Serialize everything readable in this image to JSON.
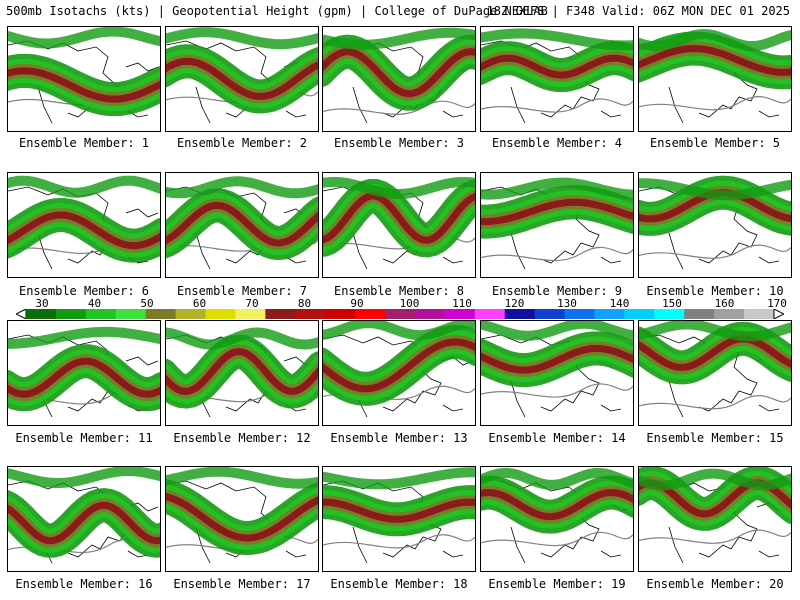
{
  "header": {
    "left": "500mb Isotachs (kts) | Geopotential Height (gpm) | College of DuPage NEXLAB",
    "right": "18Z GEFS | F348 Valid: 06Z MON DEC 01 2025"
  },
  "panels": [
    {
      "label": "Ensemble Member: 1"
    },
    {
      "label": "Ensemble Member: 2"
    },
    {
      "label": "Ensemble Member: 3"
    },
    {
      "label": "Ensemble Member: 4"
    },
    {
      "label": "Ensemble Member: 5"
    },
    {
      "label": "Ensemble Member: 6"
    },
    {
      "label": "Ensemble Member: 7"
    },
    {
      "label": "Ensemble Member: 8"
    },
    {
      "label": "Ensemble Member: 9"
    },
    {
      "label": "Ensemble Member: 10"
    },
    {
      "label": "Ensemble Member: 11"
    },
    {
      "label": "Ensemble Member: 12"
    },
    {
      "label": "Ensemble Member: 13"
    },
    {
      "label": "Ensemble Member: 14"
    },
    {
      "label": "Ensemble Member: 15"
    },
    {
      "label": "Ensemble Member: 16"
    },
    {
      "label": "Ensemble Member: 17"
    },
    {
      "label": "Ensemble Member: 18"
    },
    {
      "label": "Ensemble Member: 19"
    },
    {
      "label": "Ensemble Member: 20"
    }
  ],
  "colorbar": {
    "labels": [
      "30",
      "40",
      "50",
      "60",
      "70",
      "80",
      "90",
      "100",
      "110",
      "120",
      "130",
      "140",
      "150",
      "160",
      "170"
    ],
    "colors": [
      "#0a6e0a",
      "#139b13",
      "#22c322",
      "#3ee03e",
      "#7a7a2a",
      "#b3b32a",
      "#e0e000",
      "#f0f060",
      "#8b1a1a",
      "#b31010",
      "#d00000",
      "#ff0000",
      "#a0206e",
      "#b0109a",
      "#d000d0",
      "#ff40ff",
      "#1010a0",
      "#1040d0",
      "#1070f0",
      "#10a0ff",
      "#00d0ff",
      "#00ffff",
      "#808080",
      "#a0a0a0",
      "#c8c8c8"
    ]
  }
}
